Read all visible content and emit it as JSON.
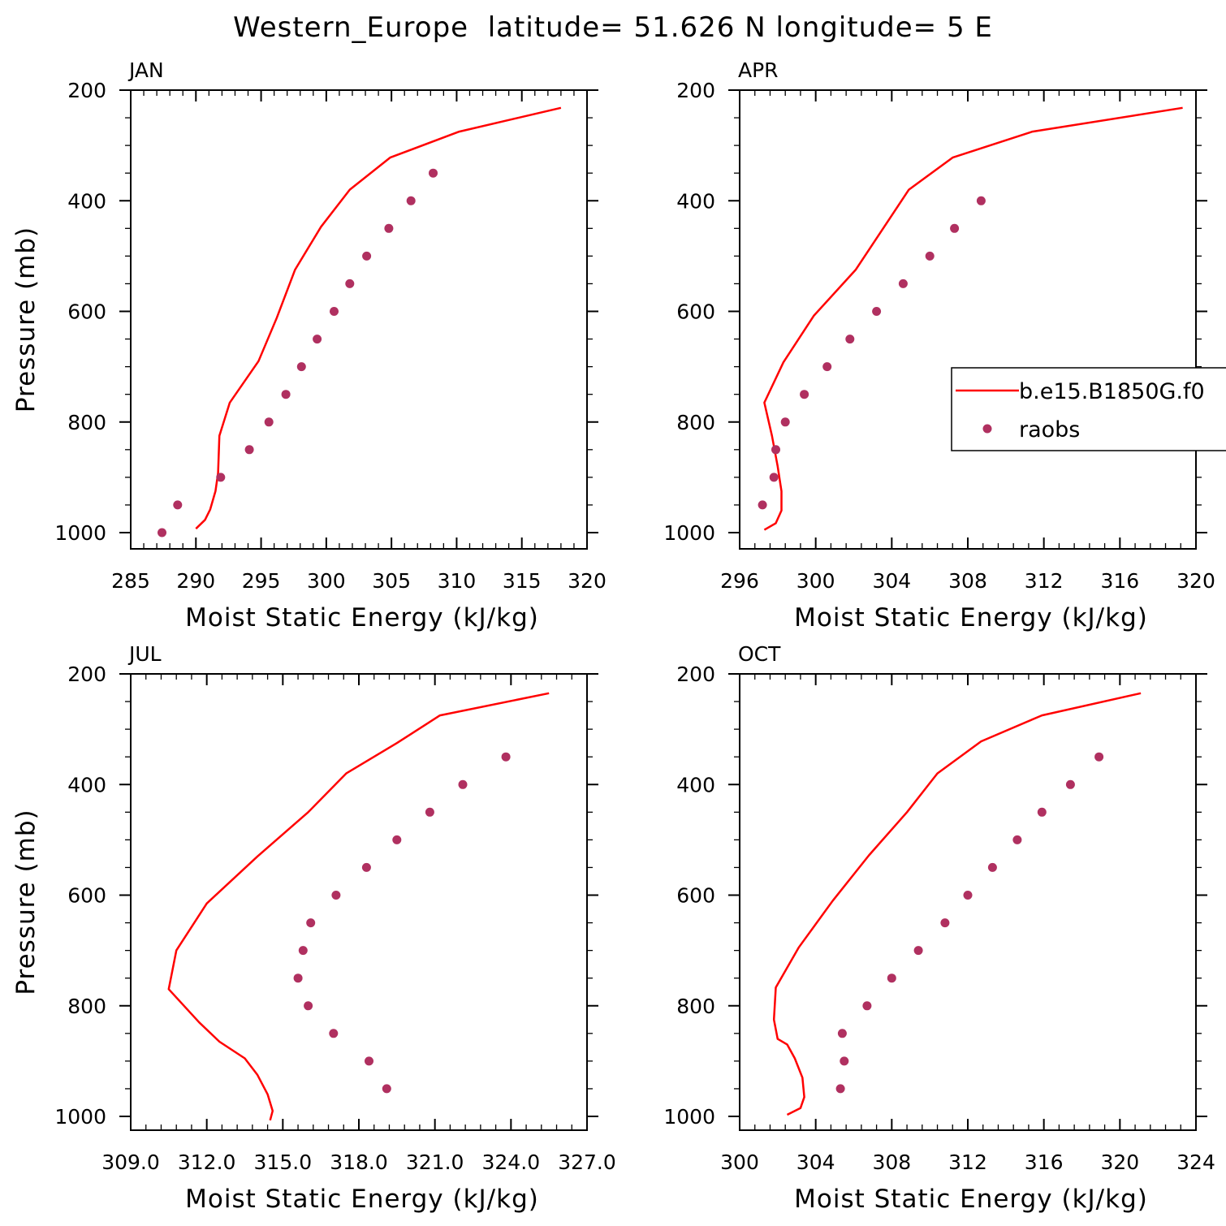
{
  "figure": {
    "title": "Western_Europe  latitude= 51.626 N longitude= 5 E"
  },
  "legend": {
    "model_label": "b.e15.B1850G.f0",
    "obs_label": "raobs"
  },
  "colors": {
    "model_line": "#ff0000",
    "obs_marker": "#b03060",
    "axes": "#000000"
  },
  "chart_data": [
    {
      "type": "line",
      "panel": "JAN",
      "xlabel": "Moist Static Energy (kJ/kg)",
      "ylabel": "Pressure (mb)",
      "xlim": [
        285,
        320
      ],
      "xticks": [
        285,
        290,
        295,
        300,
        305,
        310,
        315,
        320
      ],
      "xtick_labels": [
        "285",
        "290",
        "295",
        "300",
        "305",
        "310",
        "315",
        "320"
      ],
      "ylim": [
        1000,
        200
      ],
      "yticks": [
        200,
        400,
        600,
        800,
        1000
      ],
      "ytick_labels": [
        "200",
        "400",
        "600",
        "800",
        "1000"
      ],
      "series": [
        {
          "name": "b.e15.B1850G.f0",
          "kind": "line",
          "x": [
            290.0,
            290.7,
            291.1,
            291.5,
            291.7,
            291.8,
            292.6,
            294.8,
            296.2,
            297.6,
            299.6,
            301.8,
            304.9,
            310.2,
            318.0
          ],
          "y": [
            993,
            977,
            958,
            925,
            892,
            825,
            765,
            690,
            612,
            525,
            447,
            380,
            322,
            275,
            232
          ]
        },
        {
          "name": "raobs",
          "kind": "scatter",
          "x": [
            287.4,
            288.6,
            291.9,
            294.1,
            295.6,
            296.9,
            298.1,
            299.3,
            300.6,
            301.8,
            303.1,
            304.8,
            306.5,
            308.2
          ],
          "y": [
            1000,
            950,
            900,
            850,
            800,
            750,
            700,
            650,
            600,
            550,
            500,
            450,
            400,
            350
          ]
        }
      ]
    },
    {
      "type": "line",
      "panel": "APR",
      "xlabel": "Moist Static Energy (kJ/kg)",
      "ylabel": "",
      "xlim": [
        296,
        320
      ],
      "xticks": [
        296,
        300,
        304,
        308,
        312,
        316,
        320
      ],
      "xtick_labels": [
        "296",
        "300",
        "304",
        "308",
        "312",
        "316",
        "320"
      ],
      "ylim": [
        1000,
        200
      ],
      "yticks": [
        200,
        400,
        600,
        800,
        1000
      ],
      "ytick_labels": [
        "200",
        "400",
        "600",
        "800",
        "1000"
      ],
      "series": [
        {
          "name": "b.e15.B1850G.f0",
          "kind": "line",
          "x": [
            297.3,
            297.9,
            298.2,
            298.2,
            298.0,
            297.7,
            297.3,
            298.3,
            299.9,
            302.1,
            304.9,
            307.2,
            311.4,
            319.3
          ],
          "y": [
            995,
            983,
            960,
            925,
            880,
            825,
            765,
            692,
            608,
            525,
            380,
            322,
            275,
            232
          ]
        },
        {
          "name": "raobs",
          "kind": "scatter",
          "x": [
            297.2,
            297.8,
            297.9,
            298.4,
            299.4,
            300.6,
            301.8,
            303.2,
            304.6,
            306.0,
            307.3,
            308.7
          ],
          "y": [
            950,
            900,
            850,
            800,
            750,
            700,
            650,
            600,
            550,
            500,
            450,
            400
          ]
        }
      ]
    },
    {
      "type": "line",
      "panel": "JUL",
      "xlabel": "Moist Static Energy (kJ/kg)",
      "ylabel": "Pressure (mb)",
      "xlim": [
        309,
        327
      ],
      "xticks": [
        309,
        312,
        315,
        318,
        321,
        324,
        327
      ],
      "xtick_labels": [
        "309.0",
        "312.0",
        "315.0",
        "318.0",
        "321.0",
        "324.0",
        "327.0"
      ],
      "ylim": [
        1000,
        200
      ],
      "yticks": [
        200,
        400,
        600,
        800,
        1000
      ],
      "ytick_labels": [
        "200",
        "400",
        "600",
        "800",
        "1000"
      ],
      "series": [
        {
          "name": "b.e15.B1850G.f0",
          "kind": "line",
          "x": [
            314.5,
            314.6,
            314.4,
            314.0,
            313.5,
            312.5,
            311.7,
            310.5,
            310.8,
            312.0,
            314.0,
            316.0,
            317.5,
            319.5,
            321.2,
            325.5
          ],
          "y": [
            1007,
            990,
            960,
            925,
            895,
            865,
            830,
            770,
            700,
            615,
            530,
            450,
            380,
            325,
            275,
            235
          ]
        },
        {
          "name": "raobs",
          "kind": "scatter",
          "x": [
            319.1,
            318.4,
            317.0,
            316.0,
            315.6,
            315.8,
            316.1,
            317.1,
            318.3,
            319.5,
            320.8,
            322.1,
            323.8
          ],
          "y": [
            950,
            900,
            850,
            800,
            750,
            700,
            650,
            600,
            550,
            500,
            450,
            400,
            350
          ]
        }
      ]
    },
    {
      "type": "line",
      "panel": "OCT",
      "xlabel": "Moist Static Energy (kJ/kg)",
      "ylabel": "",
      "xlim": [
        300,
        324
      ],
      "xticks": [
        300,
        304,
        308,
        312,
        316,
        320,
        324
      ],
      "xtick_labels": [
        "300",
        "304",
        "308",
        "312",
        "316",
        "320",
        "324"
      ],
      "ylim": [
        1000,
        200
      ],
      "yticks": [
        200,
        400,
        600,
        800,
        1000
      ],
      "ytick_labels": [
        "200",
        "400",
        "600",
        "800",
        "1000"
      ],
      "series": [
        {
          "name": "b.e15.B1850G.f0",
          "kind": "line",
          "x": [
            302.5,
            303.2,
            303.4,
            303.3,
            302.9,
            302.5,
            302.0,
            301.8,
            301.9,
            303.1,
            304.9,
            306.8,
            308.8,
            310.4,
            312.7,
            315.9,
            321.1
          ],
          "y": [
            997,
            985,
            965,
            930,
            895,
            870,
            860,
            825,
            767,
            695,
            610,
            528,
            450,
            380,
            322,
            275,
            235
          ]
        },
        {
          "name": "raobs",
          "kind": "scatter",
          "x": [
            305.3,
            305.5,
            305.4,
            306.7,
            308.0,
            309.4,
            310.8,
            312.0,
            313.3,
            314.6,
            315.9,
            317.4,
            318.9
          ],
          "y": [
            950,
            900,
            850,
            800,
            750,
            700,
            650,
            600,
            550,
            500,
            450,
            400,
            350
          ]
        }
      ]
    }
  ]
}
